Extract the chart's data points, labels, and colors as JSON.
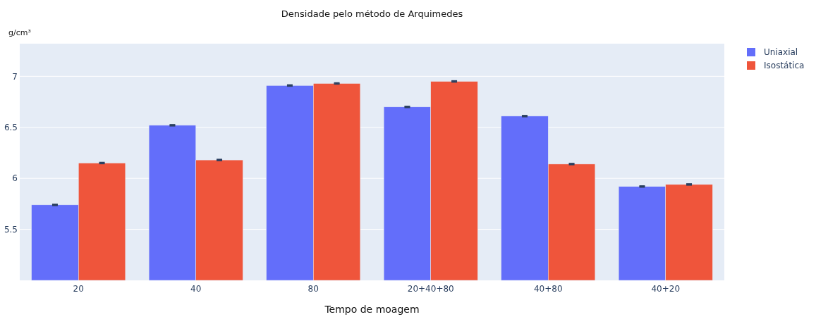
{
  "chart_data": {
    "type": "bar",
    "title": "Densidade pelo método de Arquimedes",
    "xlabel": "Tempo de moagem",
    "ylabel": "g/cm³",
    "categories": [
      "20",
      "40",
      "80",
      "20+40+80",
      "40+80",
      "40+20"
    ],
    "series": [
      {
        "name": "Uniaxial",
        "color": "#636efa",
        "values": [
          5.74,
          6.52,
          6.91,
          6.7,
          6.61,
          5.92
        ],
        "errors": [
          0.005,
          0.005,
          0.005,
          0.005,
          0.005,
          0.005
        ]
      },
      {
        "name": "Isostática",
        "color": "#ef553b",
        "values": [
          6.15,
          6.18,
          6.93,
          6.95,
          6.14,
          5.94
        ],
        "errors": [
          0.005,
          0.005,
          0.005,
          0.005,
          0.005,
          0.005
        ]
      }
    ],
    "ylim": [
      5.0,
      7.32
    ],
    "yticks": [
      5.5,
      6,
      6.5,
      7
    ],
    "grid": "y",
    "legend": "top right"
  }
}
